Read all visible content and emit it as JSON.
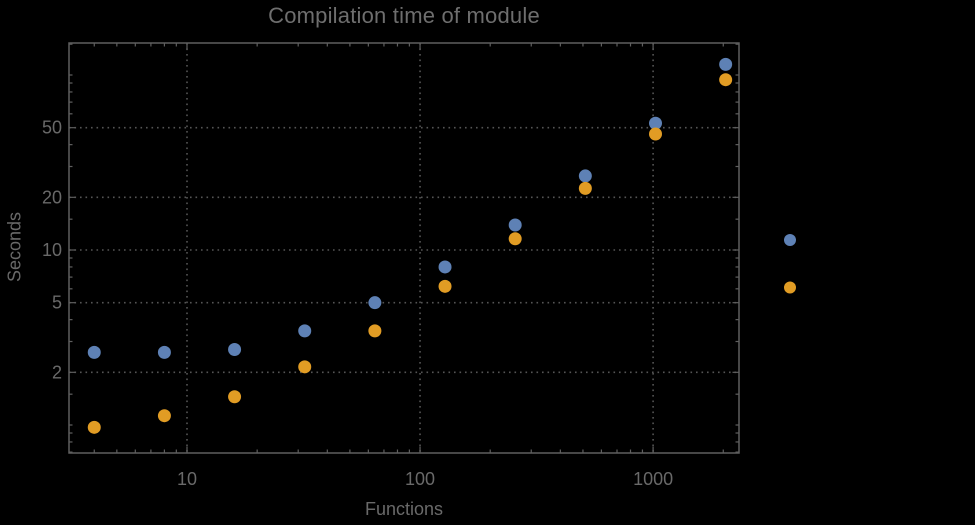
{
  "title": "Compilation time of module",
  "x_axis": {
    "label": "Functions",
    "scale": "log",
    "major_ticks": [
      10,
      100,
      1000
    ],
    "tick_labels": [
      "10",
      "100",
      "1000"
    ]
  },
  "y_axis": {
    "label": "Seconds",
    "scale": "log",
    "major_ticks": [
      2,
      5,
      10,
      20,
      50
    ],
    "tick_labels": [
      "2",
      "5",
      "10",
      "20",
      "50"
    ]
  },
  "colors": {
    "background": "#000000",
    "frame": "#5f5f5f",
    "grid": "#555555",
    "text": "#696969",
    "series_blue": "#5E81B5",
    "series_orange": "#E19C24"
  },
  "legend": {
    "markers": [
      {
        "name": "blue-marker",
        "color": "#5E81B5"
      },
      {
        "name": "orange-marker",
        "color": "#E19C24"
      }
    ]
  },
  "chart_data": {
    "type": "scatter",
    "title": "Compilation time of module",
    "xlabel": "Functions",
    "ylabel": "Seconds",
    "x_scale": "log",
    "y_scale": "log",
    "grid": true,
    "legend_position": "right-outside",
    "xlim": [
      3.1,
      2340
    ],
    "ylim": [
      0.69,
      152
    ],
    "x": [
      4,
      8,
      16,
      32,
      64,
      128,
      256,
      512,
      1024,
      2048
    ],
    "series": [
      {
        "name": "series-blue",
        "color": "#5E81B5",
        "values": [
          2.6,
          2.6,
          2.7,
          3.45,
          5.0,
          8.0,
          13.9,
          26.5,
          53,
          115
        ]
      },
      {
        "name": "series-orange",
        "color": "#E19C24",
        "values": [
          0.97,
          1.13,
          1.45,
          2.15,
          3.45,
          6.2,
          11.6,
          22.5,
          46,
          94
        ]
      }
    ]
  }
}
